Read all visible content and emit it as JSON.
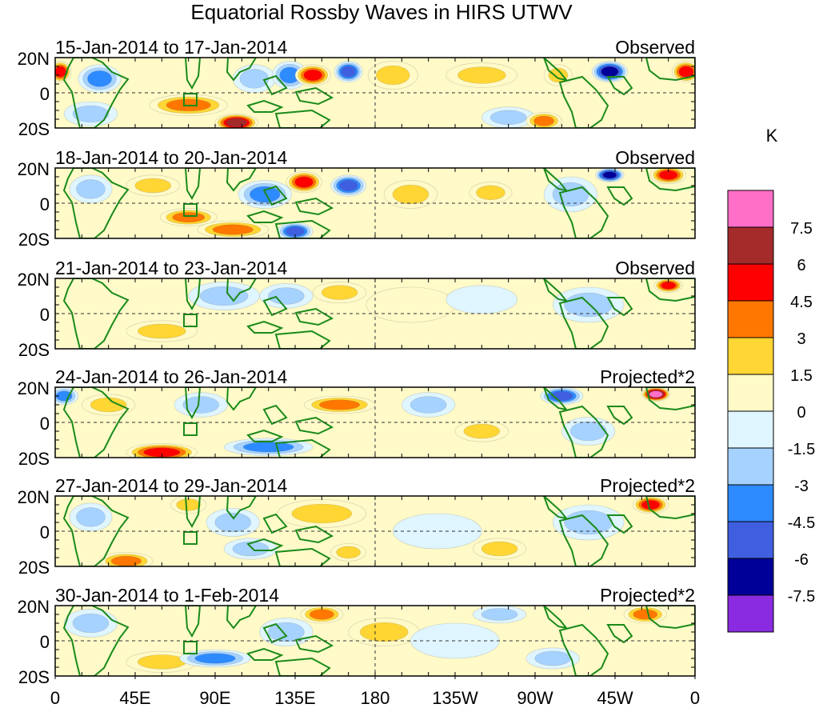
{
  "chart_data": {
    "type": "heatmap",
    "title": "Equatorial Rossby Waves in HIRS UTWV",
    "units": "K",
    "lat_range": [
      -20,
      20
    ],
    "lon_range": [
      0,
      360
    ],
    "y_tick_labels": [
      "20N",
      "0",
      "20S"
    ],
    "x_tick_labels": [
      "0",
      "45E",
      "90E",
      "135E",
      "180",
      "135W",
      "90W",
      "45W",
      "0"
    ],
    "colorbar": {
      "labels": [
        "7.5",
        "6",
        "4.5",
        "3",
        "1.5",
        "0",
        "-1.5",
        "-3",
        "-4.5",
        "-6",
        "-7.5"
      ],
      "colors": [
        "#ff6ec7",
        "#a52a2a",
        "#ff0000",
        "#ff7700",
        "#ffd633",
        "#fffac8",
        "#dff5ff",
        "#a6d2ff",
        "#2e8bff",
        "#3f5fe0",
        "#000099",
        "#8a2be2"
      ]
    },
    "panels": [
      {
        "date_label": "15-Jan-2014 to 17-Jan-2014",
        "type_label": "Observed",
        "blobs": [
          {
            "lon": 3,
            "lat": 12,
            "v": 5,
            "rx": 6,
            "ry": 6
          },
          {
            "lon": 25,
            "lat": 8,
            "v": -3.5,
            "rx": 12,
            "ry": 8
          },
          {
            "lon": 20,
            "lat": -12,
            "v": -3,
            "rx": 15,
            "ry": 7
          },
          {
            "lon": 75,
            "lat": -7,
            "v": 3.5,
            "rx": 22,
            "ry": 6
          },
          {
            "lon": 102,
            "lat": -17,
            "v": 7,
            "rx": 12,
            "ry": 5
          },
          {
            "lon": 112,
            "lat": 8,
            "v": -3,
            "rx": 12,
            "ry": 8
          },
          {
            "lon": 132,
            "lat": 10,
            "v": -4.5,
            "rx": 10,
            "ry": 8
          },
          {
            "lon": 145,
            "lat": 10,
            "v": 5,
            "rx": 10,
            "ry": 6
          },
          {
            "lon": 165,
            "lat": 12,
            "v": -5.5,
            "rx": 8,
            "ry": 6
          },
          {
            "lon": 190,
            "lat": 10,
            "v": 2,
            "rx": 14,
            "ry": 8
          },
          {
            "lon": 240,
            "lat": 10,
            "v": 2,
            "rx": 20,
            "ry": 7
          },
          {
            "lon": 255,
            "lat": -14,
            "v": -3,
            "rx": 15,
            "ry": 6
          },
          {
            "lon": 275,
            "lat": -16,
            "v": 4,
            "rx": 10,
            "ry": 5
          },
          {
            "lon": 283,
            "lat": 10,
            "v": 2.5,
            "rx": 8,
            "ry": 6
          },
          {
            "lon": 312,
            "lat": 12,
            "v": -6.5,
            "rx": 10,
            "ry": 6
          },
          {
            "lon": 355,
            "lat": 12,
            "v": 5,
            "rx": 8,
            "ry": 6
          }
        ]
      },
      {
        "date_label": "18-Jan-2014 to 20-Jan-2014",
        "type_label": "Observed",
        "blobs": [
          {
            "lon": 20,
            "lat": 8,
            "v": -3,
            "rx": 12,
            "ry": 8
          },
          {
            "lon": 55,
            "lat": 10,
            "v": 2,
            "rx": 15,
            "ry": 6
          },
          {
            "lon": 75,
            "lat": -8,
            "v": 3.5,
            "rx": 16,
            "ry": 5
          },
          {
            "lon": 100,
            "lat": -15,
            "v": 3.5,
            "rx": 20,
            "ry": 5
          },
          {
            "lon": 135,
            "lat": -16,
            "v": -5,
            "rx": 10,
            "ry": 5
          },
          {
            "lon": 118,
            "lat": 5,
            "v": -3.5,
            "rx": 15,
            "ry": 8
          },
          {
            "lon": 140,
            "lat": 12,
            "v": 5,
            "rx": 10,
            "ry": 6
          },
          {
            "lon": 165,
            "lat": 10,
            "v": -5,
            "rx": 10,
            "ry": 6
          },
          {
            "lon": 200,
            "lat": 5,
            "v": 2,
            "rx": 15,
            "ry": 8
          },
          {
            "lon": 245,
            "lat": 6,
            "v": 2,
            "rx": 12,
            "ry": 6
          },
          {
            "lon": 290,
            "lat": 5,
            "v": -3,
            "rx": 15,
            "ry": 10
          },
          {
            "lon": 312,
            "lat": 16,
            "v": -6.5,
            "rx": 8,
            "ry": 4
          },
          {
            "lon": 345,
            "lat": 16,
            "v": 6,
            "rx": 10,
            "ry": 5
          }
        ]
      },
      {
        "date_label": "21-Jan-2014 to 23-Jan-2014",
        "type_label": "Observed",
        "blobs": [
          {
            "lon": 60,
            "lat": -10,
            "v": 2.5,
            "rx": 20,
            "ry": 6
          },
          {
            "lon": 95,
            "lat": 10,
            "v": -2,
            "rx": 20,
            "ry": 8
          },
          {
            "lon": 130,
            "lat": 10,
            "v": -2,
            "rx": 15,
            "ry": 7
          },
          {
            "lon": 160,
            "lat": 12,
            "v": 2,
            "rx": 15,
            "ry": 6
          },
          {
            "lon": 200,
            "lat": 5,
            "v": 1.5,
            "rx": 25,
            "ry": 10
          },
          {
            "lon": 240,
            "lat": 8,
            "v": -1.5,
            "rx": 20,
            "ry": 8
          },
          {
            "lon": 300,
            "lat": 5,
            "v": -2,
            "rx": 20,
            "ry": 10
          },
          {
            "lon": 345,
            "lat": 16,
            "v": 6,
            "rx": 8,
            "ry": 4
          }
        ]
      },
      {
        "date_label": "24-Jan-2014 to 26-Jan-2014",
        "type_label": "Projected*2",
        "blobs": [
          {
            "lon": 5,
            "lat": 15,
            "v": -4,
            "rx": 8,
            "ry": 5
          },
          {
            "lon": 30,
            "lat": 10,
            "v": 2,
            "rx": 15,
            "ry": 6
          },
          {
            "lon": 60,
            "lat": -17,
            "v": 5,
            "rx": 20,
            "ry": 5
          },
          {
            "lon": 82,
            "lat": 10,
            "v": -2.5,
            "rx": 15,
            "ry": 7
          },
          {
            "lon": 120,
            "lat": -14,
            "v": -4,
            "rx": 25,
            "ry": 5
          },
          {
            "lon": 160,
            "lat": 10,
            "v": 4.5,
            "rx": 20,
            "ry": 5
          },
          {
            "lon": 210,
            "lat": 10,
            "v": -2.5,
            "rx": 15,
            "ry": 7
          },
          {
            "lon": 240,
            "lat": -5,
            "v": 2,
            "rx": 15,
            "ry": 6
          },
          {
            "lon": 285,
            "lat": 15,
            "v": -5,
            "rx": 12,
            "ry": 5
          },
          {
            "lon": 300,
            "lat": -5,
            "v": -3,
            "rx": 15,
            "ry": 8
          },
          {
            "lon": 338,
            "lat": 16,
            "v": 9,
            "rx": 8,
            "ry": 4
          }
        ]
      },
      {
        "date_label": "27-Jan-2014 to 29-Jan-2014",
        "type_label": "Projected*2",
        "blobs": [
          {
            "lon": 40,
            "lat": -17,
            "v": 4,
            "rx": 15,
            "ry": 5
          },
          {
            "lon": 20,
            "lat": 8,
            "v": -2,
            "rx": 12,
            "ry": 8
          },
          {
            "lon": 75,
            "lat": 15,
            "v": 2,
            "rx": 10,
            "ry": 5
          },
          {
            "lon": 100,
            "lat": 5,
            "v": -3,
            "rx": 15,
            "ry": 8
          },
          {
            "lon": 110,
            "lat": -10,
            "v": -3,
            "rx": 15,
            "ry": 6
          },
          {
            "lon": 150,
            "lat": 10,
            "v": 2,
            "rx": 25,
            "ry": 8
          },
          {
            "lon": 165,
            "lat": -12,
            "v": 3,
            "rx": 10,
            "ry": 5
          },
          {
            "lon": 215,
            "lat": 0,
            "v": -1.5,
            "rx": 25,
            "ry": 10
          },
          {
            "lon": 250,
            "lat": -10,
            "v": 2,
            "rx": 15,
            "ry": 6
          },
          {
            "lon": 300,
            "lat": 5,
            "v": -2,
            "rx": 20,
            "ry": 10
          },
          {
            "lon": 335,
            "lat": 15,
            "v": 6,
            "rx": 10,
            "ry": 5
          }
        ]
      },
      {
        "date_label": "30-Jan-2014 to 1-Feb-2014",
        "type_label": "Projected*2",
        "blobs": [
          {
            "lon": 20,
            "lat": 10,
            "v": -2,
            "rx": 15,
            "ry": 8
          },
          {
            "lon": 60,
            "lat": -12,
            "v": 2,
            "rx": 20,
            "ry": 6
          },
          {
            "lon": 90,
            "lat": -10,
            "v": -3.5,
            "rx": 20,
            "ry": 5
          },
          {
            "lon": 130,
            "lat": 5,
            "v": -3,
            "rx": 15,
            "ry": 8
          },
          {
            "lon": 150,
            "lat": 15,
            "v": 3.5,
            "rx": 12,
            "ry": 5
          },
          {
            "lon": 185,
            "lat": 5,
            "v": 2,
            "rx": 20,
            "ry": 8
          },
          {
            "lon": 225,
            "lat": 0,
            "v": -1.5,
            "rx": 25,
            "ry": 10
          },
          {
            "lon": 250,
            "lat": 15,
            "v": -2,
            "rx": 15,
            "ry": 5
          },
          {
            "lon": 280,
            "lat": -10,
            "v": -2.5,
            "rx": 15,
            "ry": 6
          },
          {
            "lon": 332,
            "lat": 15,
            "v": 3.5,
            "rx": 12,
            "ry": 5
          }
        ]
      }
    ]
  }
}
